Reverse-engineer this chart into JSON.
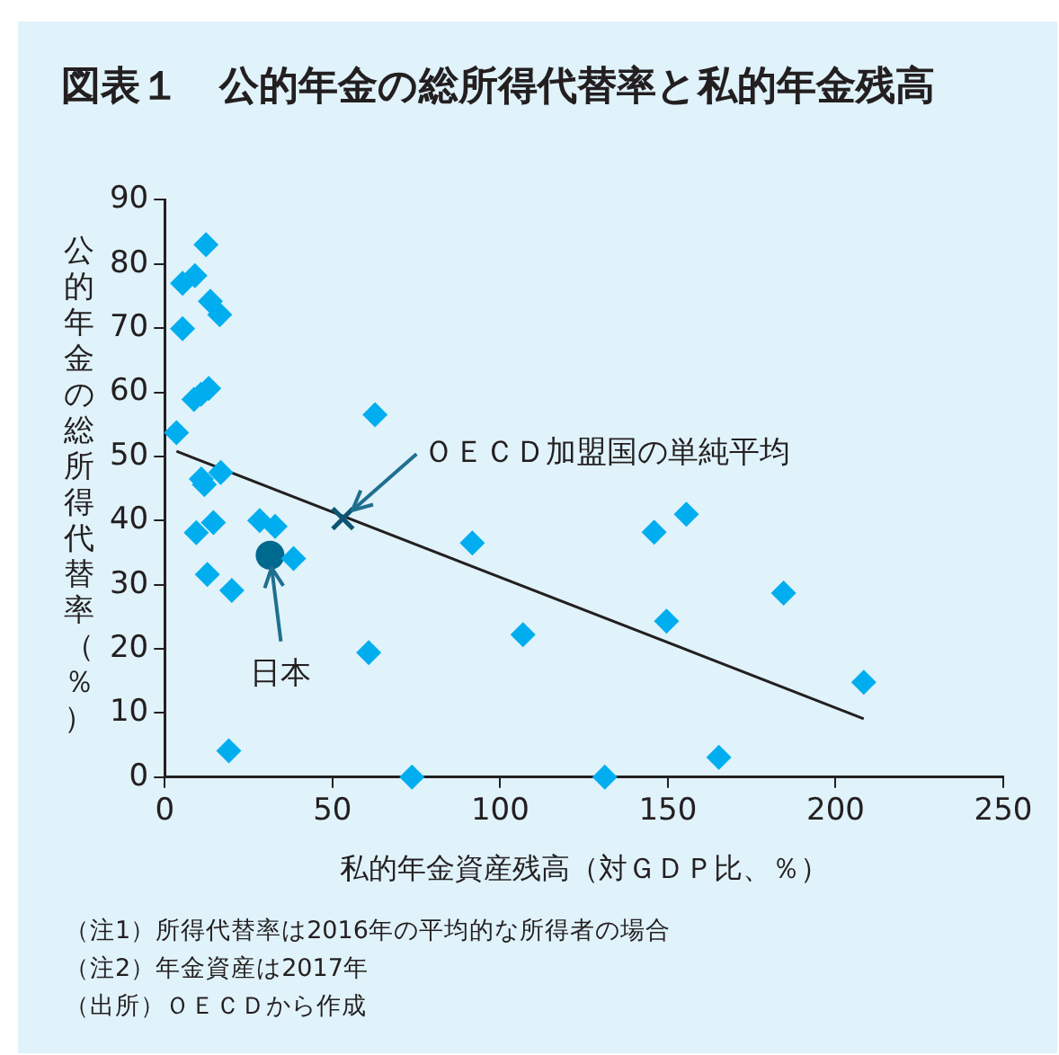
{
  "chart_data": {
    "type": "scatter",
    "title": "図表１　公的年金の総所得代替率と私的年金残高",
    "xlabel": "私的年金資産残高（対ＧＤＰ比、％）",
    "ylabel": "公的年金の総所得代替率（％）",
    "xlim": [
      0,
      250
    ],
    "xticks": [
      0,
      50,
      100,
      150,
      200,
      250
    ],
    "ylim": [
      0,
      90
    ],
    "yticks": [
      0,
      10,
      20,
      30,
      40,
      50,
      60,
      70,
      80,
      90
    ],
    "grid": false,
    "legend": false,
    "series": [
      {
        "type": "scatter",
        "color": "#00aeef",
        "marker": "diamond",
        "x": [
          12.3,
          5.3,
          9.0,
          13.6,
          16.4,
          5.3,
          8.7,
          13.1,
          10.8,
          3.5,
          62.7,
          10.9,
          16.7,
          11.8,
          9.4,
          14.5,
          28.3,
          32.9,
          38.4,
          12.7,
          20.0,
          60.8,
          19.1,
          73.7,
          91.7,
          106.8,
          145.9,
          155.5,
          149.6,
          184.5,
          208.4,
          131.2,
          165.2
        ],
        "values": [
          83.0,
          77.0,
          78.2,
          74.2,
          72.1,
          69.9,
          58.9,
          60.6,
          59.7,
          53.7,
          56.5,
          46.5,
          47.5,
          45.6,
          38.1,
          39.7,
          40.0,
          39.1,
          34.1,
          31.6,
          29.1,
          19.4,
          4.1,
          0,
          36.5,
          22.2,
          38.2,
          41.0,
          24.3,
          28.7,
          14.8,
          0,
          3.1
        ]
      },
      {
        "type": "scatter",
        "color": "#006a8e",
        "marker": "circle",
        "x": [
          31.4
        ],
        "values": [
          34.6
        ]
      },
      {
        "type": "scatter",
        "color": "#0b5573",
        "marker": "cross",
        "x": [
          53.1
        ],
        "values": [
          40.3
        ]
      },
      {
        "type": "line",
        "color": "#231f20",
        "marker": "none",
        "x": [
          3.5,
          208.4
        ],
        "values": [
          50.8,
          9.1
        ]
      }
    ],
    "annotations": [
      {
        "text": "ＯＥＣＤ加盟国の単純平均",
        "x": 53.1,
        "y": 40.3
      },
      {
        "text": "日本",
        "x": 31.4,
        "y": 34.6
      },
      "（注1）所得代替率は2016年の平均的な所得者の場合",
      "（注2）年金資産は2017年",
      "（出所）ＯＥＣＤから作成"
    ]
  }
}
